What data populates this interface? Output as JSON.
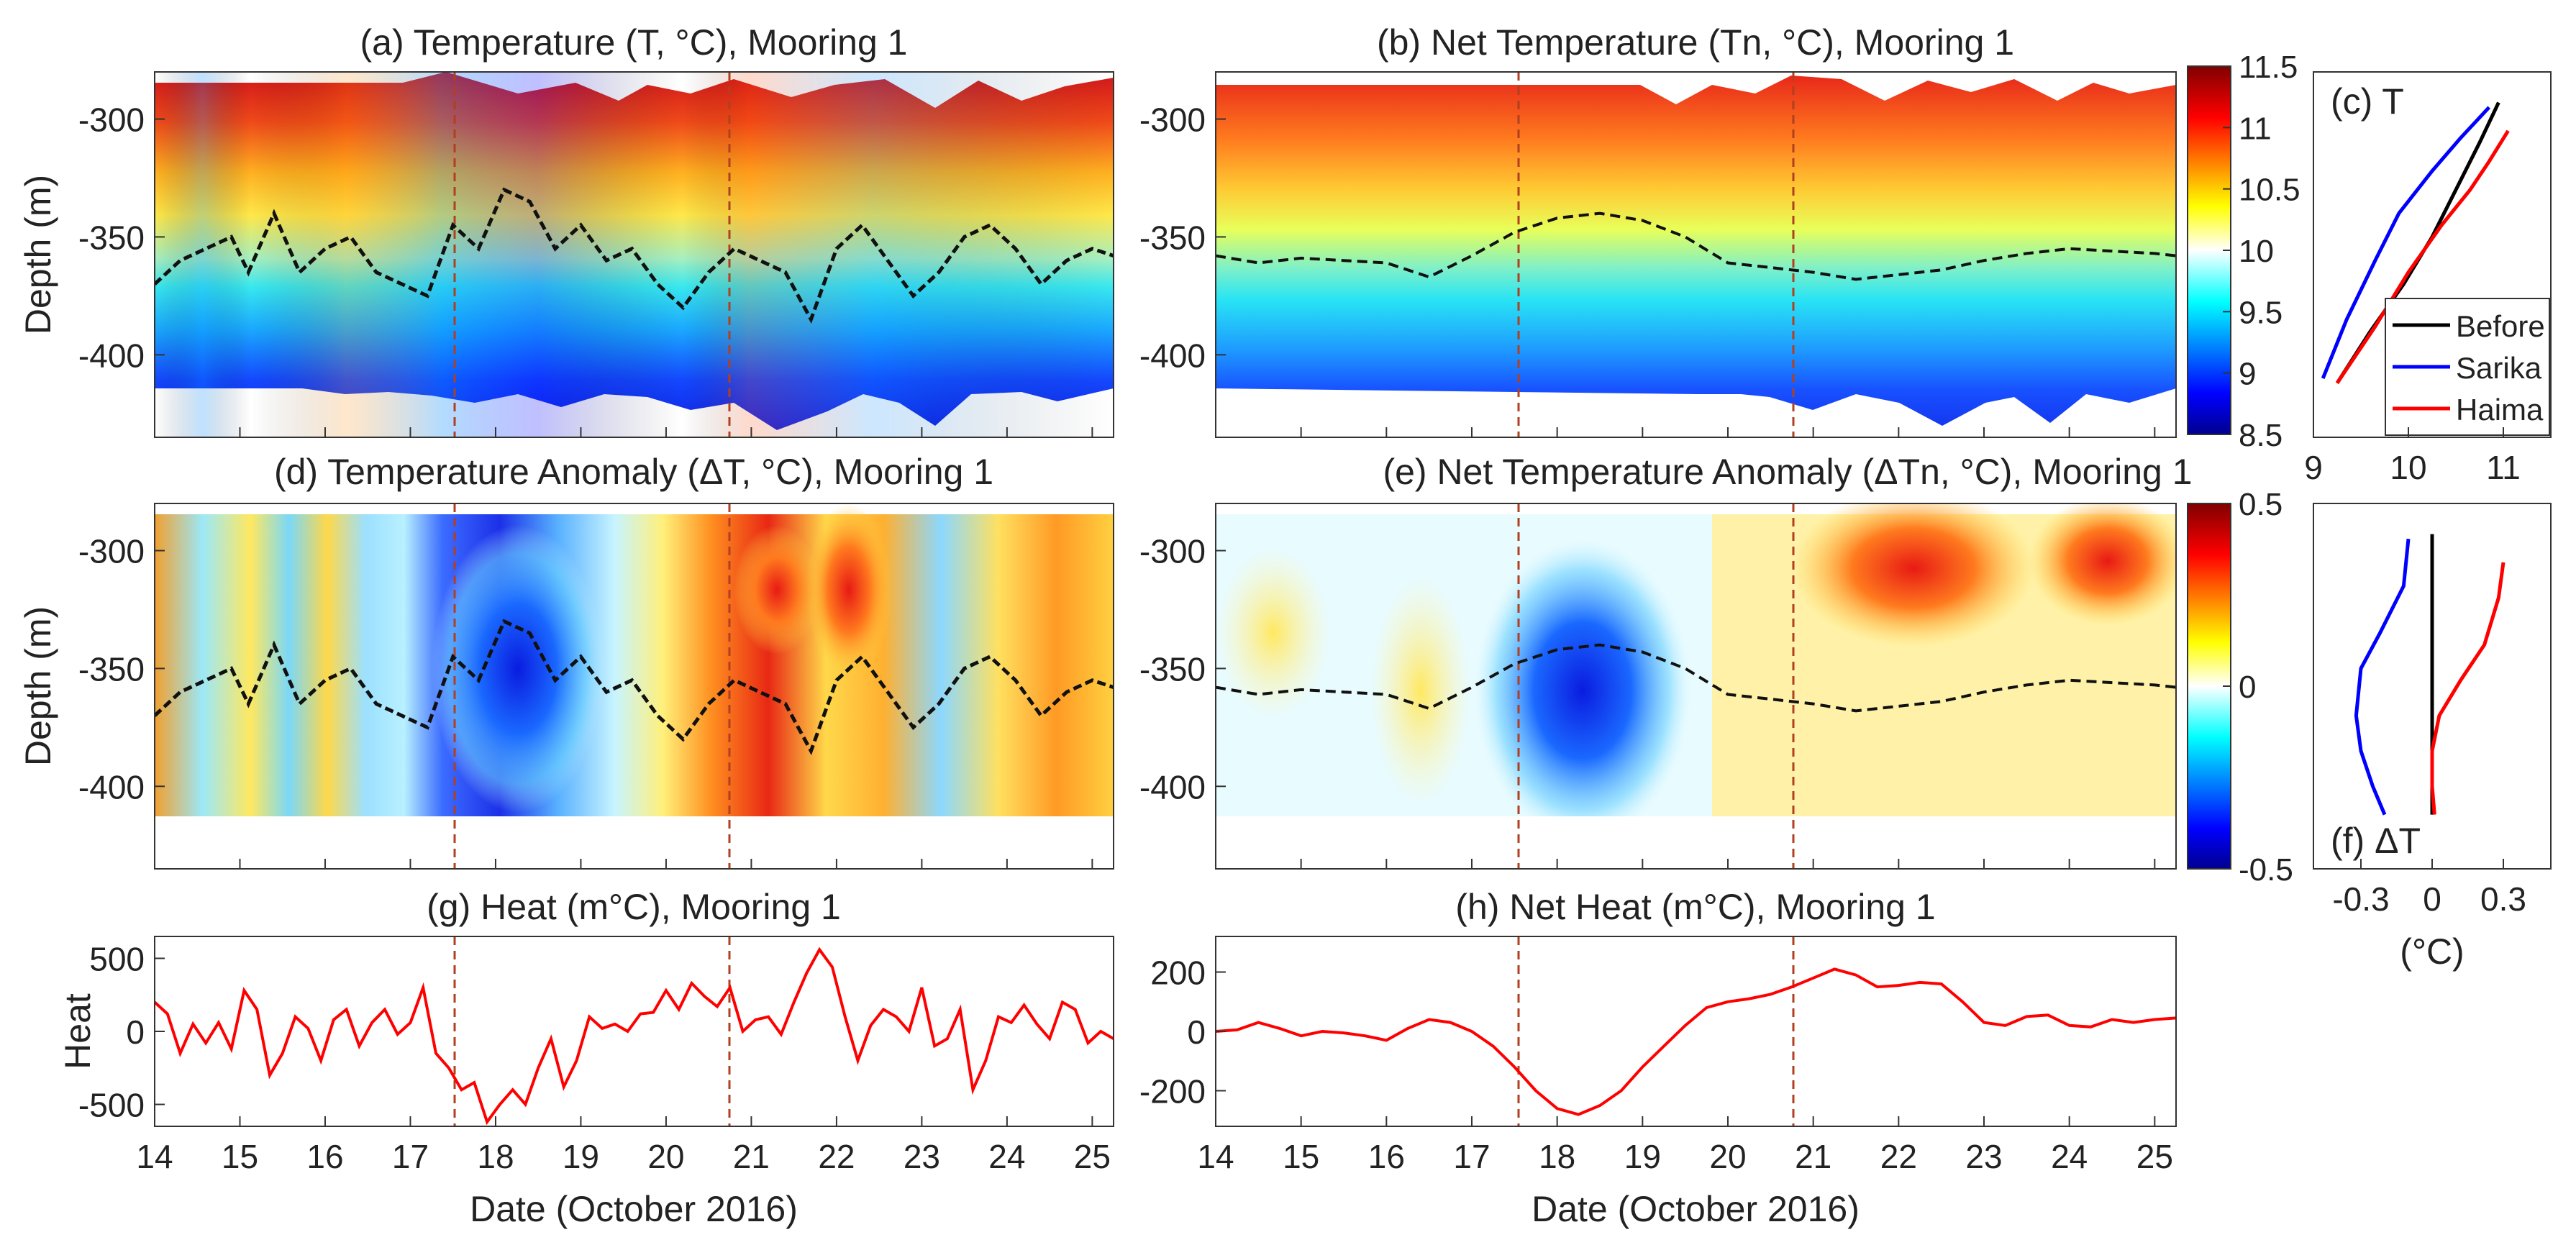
{
  "chart_data": [
    {
      "id": "a",
      "type": "heatmap",
      "title": "(a) Temperature (T, °C), Mooring 1",
      "ylabel": "Depth (m)",
      "xlim": [
        14,
        25.25
      ],
      "ylim": [
        -435,
        -280
      ],
      "yticks": [
        -300,
        -350,
        -400
      ],
      "ytick_labels": [
        "-300",
        "-350",
        "-400"
      ],
      "xticks": [
        15,
        16,
        17,
        18,
        19,
        20,
        21,
        22,
        23,
        24,
        25
      ],
      "event_lines": [
        17.55,
        20.75
      ],
      "series": [
        {
          "name": "",
          "type": "line",
          "style": "dashed black",
          "x": [
            14,
            14.3,
            14.6,
            14.9,
            15.1,
            15.4,
            15.7,
            16.0,
            16.3,
            16.6,
            16.9,
            17.2,
            17.5,
            17.8,
            18.1,
            18.4,
            18.7,
            19.0,
            19.3,
            19.6,
            19.9,
            20.2,
            20.5,
            20.8,
            21.1,
            21.4,
            21.7,
            22.0,
            22.3,
            22.6,
            22.9,
            23.2,
            23.5,
            23.8,
            24.1,
            24.4,
            24.7,
            25.0,
            25.25
          ],
          "values": [
            -370,
            -360,
            -355,
            -350,
            -365,
            -340,
            -365,
            -355,
            -350,
            -365,
            -370,
            -375,
            -345,
            -355,
            -330,
            -335,
            -355,
            -345,
            -360,
            -355,
            -370,
            -380,
            -365,
            -355,
            -360,
            -365,
            -385,
            -355,
            -345,
            -360,
            -375,
            -365,
            -350,
            -345,
            -355,
            -370,
            -360,
            -355,
            -358
          ]
        }
      ]
    },
    {
      "id": "b",
      "type": "heatmap",
      "title": "(b) Net Temperature (Tn, °C), Mooring 1",
      "ylabel": "",
      "xlim": [
        14,
        25.25
      ],
      "ylim": [
        -435,
        -280
      ],
      "yticks": [
        -300,
        -350,
        -400
      ],
      "ytick_labels": [
        "-300",
        "-350",
        "-400"
      ],
      "xticks": [
        15,
        16,
        17,
        18,
        19,
        20,
        21,
        22,
        23,
        24,
        25
      ],
      "event_lines": [
        17.55,
        20.75
      ],
      "series": [
        {
          "name": "",
          "type": "line",
          "style": "dashed black",
          "x": [
            14,
            14.5,
            15,
            15.5,
            16,
            16.5,
            17,
            17.5,
            18,
            18.5,
            19,
            19.5,
            20,
            20.5,
            21,
            21.5,
            22,
            22.5,
            23,
            23.5,
            24,
            24.5,
            25,
            25.25
          ],
          "values": [
            -358,
            -361,
            -359,
            -360,
            -361,
            -367,
            -358,
            -348,
            -342,
            -340,
            -343,
            -350,
            -361,
            -363,
            -365,
            -368,
            -366,
            -364,
            -360,
            -357,
            -355,
            -356,
            -357,
            -358
          ]
        }
      ]
    },
    {
      "id": "c",
      "type": "line",
      "title": "(c) T",
      "xlim": [
        9,
        11.5
      ],
      "ylim": [
        -435,
        -280
      ],
      "xticks": [
        9,
        10,
        11
      ],
      "xtick_labels": [
        "9",
        "10",
        "11"
      ],
      "legend": {
        "placement": "bottom-right",
        "entries": [
          "Before",
          "Sarika",
          "Haima"
        ]
      },
      "series": [
        {
          "name": "Before",
          "color": "#000000",
          "x": [
            9.25,
            9.6,
            9.95,
            10.25,
            10.5,
            10.75,
            10.95
          ],
          "y": [
            -412,
            -390,
            -370,
            -350,
            -330,
            -310,
            -293
          ]
        },
        {
          "name": "Sarika",
          "color": "#0000ff",
          "x": [
            9.1,
            9.35,
            9.65,
            9.9,
            10.25,
            10.55,
            10.85
          ],
          "y": [
            -410,
            -385,
            -360,
            -340,
            -322,
            -308,
            -295
          ]
        },
        {
          "name": "Haima",
          "color": "#ff0000",
          "x": [
            9.25,
            9.65,
            10.0,
            10.35,
            10.65,
            10.85,
            11.05
          ],
          "y": [
            -412,
            -388,
            -365,
            -345,
            -330,
            -318,
            -305
          ]
        }
      ],
      "colorbar": {
        "min": 8.5,
        "max": 11.5,
        "ticks": [
          8.5,
          9,
          9.5,
          10,
          10.5,
          11,
          11.5
        ],
        "tick_labels": [
          "8.5",
          "9",
          "9.5",
          "10",
          "10.5",
          "11",
          "11.5"
        ]
      }
    },
    {
      "id": "d",
      "type": "heatmap",
      "title": "(d) Temperature Anomaly (ΔT, °C), Mooring 1",
      "ylabel": "Depth (m)",
      "xlim": [
        14,
        25.25
      ],
      "ylim": [
        -435,
        -280
      ],
      "yticks": [
        -300,
        -350,
        -400
      ],
      "ytick_labels": [
        "-300",
        "-350",
        "-400"
      ],
      "xticks": [
        15,
        16,
        17,
        18,
        19,
        20,
        21,
        22,
        23,
        24,
        25
      ],
      "event_lines": [
        17.55,
        20.75
      ],
      "series": [
        {
          "name": "",
          "type": "line",
          "style": "dashed black",
          "x": [
            14,
            14.3,
            14.6,
            14.9,
            15.1,
            15.4,
            15.7,
            16.0,
            16.3,
            16.6,
            16.9,
            17.2,
            17.5,
            17.8,
            18.1,
            18.4,
            18.7,
            19.0,
            19.3,
            19.6,
            19.9,
            20.2,
            20.5,
            20.8,
            21.1,
            21.4,
            21.7,
            22.0,
            22.3,
            22.6,
            22.9,
            23.2,
            23.5,
            23.8,
            24.1,
            24.4,
            24.7,
            25.0,
            25.25
          ],
          "values": [
            -370,
            -360,
            -355,
            -350,
            -365,
            -340,
            -365,
            -355,
            -350,
            -365,
            -370,
            -375,
            -345,
            -355,
            -330,
            -335,
            -355,
            -345,
            -360,
            -355,
            -370,
            -380,
            -365,
            -355,
            -360,
            -365,
            -385,
            -355,
            -345,
            -360,
            -375,
            -365,
            -350,
            -345,
            -355,
            -370,
            -360,
            -355,
            -358
          ]
        }
      ]
    },
    {
      "id": "e",
      "type": "heatmap",
      "title": "(e) Net Temperature Anomaly (ΔTn, °C), Mooring 1",
      "ylabel": "",
      "xlim": [
        14,
        25.25
      ],
      "ylim": [
        -435,
        -280
      ],
      "yticks": [
        -300,
        -350,
        -400
      ],
      "ytick_labels": [
        "-300",
        "-350",
        "-400"
      ],
      "xticks": [
        15,
        16,
        17,
        18,
        19,
        20,
        21,
        22,
        23,
        24,
        25
      ],
      "event_lines": [
        17.55,
        20.75
      ],
      "series": [
        {
          "name": "",
          "type": "line",
          "style": "dashed black",
          "x": [
            14,
            14.5,
            15,
            15.5,
            16,
            16.5,
            17,
            17.5,
            18,
            18.5,
            19,
            19.5,
            20,
            20.5,
            21,
            21.5,
            22,
            22.5,
            23,
            23.5,
            24,
            24.5,
            25,
            25.25
          ],
          "values": [
            -358,
            -361,
            -359,
            -360,
            -361,
            -367,
            -358,
            -348,
            -342,
            -340,
            -343,
            -350,
            -361,
            -363,
            -365,
            -368,
            -366,
            -364,
            -360,
            -357,
            -355,
            -356,
            -357,
            -358
          ]
        }
      ]
    },
    {
      "id": "f",
      "type": "line",
      "title": "(f) ΔT",
      "xlabel": "(°C)",
      "xlim": [
        -0.5,
        0.5
      ],
      "ylim": [
        -435,
        -280
      ],
      "xticks": [
        -0.3,
        0,
        0.3
      ],
      "xtick_labels": [
        "-0.3",
        "0",
        "0.3"
      ],
      "series": [
        {
          "name": "Before",
          "color": "#000000",
          "x": [
            0,
            0,
            0,
            0,
            0
          ],
          "y": [
            -293,
            -320,
            -350,
            -380,
            -412
          ]
        },
        {
          "name": "Sarika",
          "color": "#0000ff",
          "x": [
            -0.1,
            -0.12,
            -0.22,
            -0.3,
            -0.32,
            -0.3,
            -0.25,
            -0.2
          ],
          "y": [
            -295,
            -315,
            -335,
            -350,
            -370,
            -385,
            -400,
            -412
          ]
        },
        {
          "name": "Haima",
          "color": "#ff0000",
          "x": [
            0.3,
            0.28,
            0.22,
            0.12,
            0.03,
            0.0,
            0.0,
            0.01
          ],
          "y": [
            -305,
            -320,
            -340,
            -355,
            -370,
            -385,
            -400,
            -412
          ]
        }
      ],
      "colorbar": {
        "min": -0.5,
        "max": 0.5,
        "ticks": [
          -0.5,
          0,
          0.5
        ],
        "tick_labels": [
          "-0.5",
          "0",
          "0.5"
        ]
      }
    },
    {
      "id": "g",
      "type": "line",
      "title": "(g) Heat (m°C), Mooring 1",
      "xlabel": "Date (October 2016)",
      "ylabel": "Heat",
      "xlim": [
        14,
        25.25
      ],
      "ylim": [
        -650,
        650
      ],
      "yticks": [
        500,
        0,
        -500
      ],
      "ytick_labels": [
        "500",
        "0",
        "-500"
      ],
      "xticks": [
        14,
        15,
        16,
        17,
        18,
        19,
        20,
        21,
        22,
        23,
        24,
        25
      ],
      "xtick_labels": [
        "14",
        "15",
        "16",
        "17",
        "18",
        "19",
        "20",
        "21",
        "22",
        "23",
        "24",
        "25"
      ],
      "event_lines": [
        17.55,
        20.75
      ],
      "series": [
        {
          "name": "",
          "color": "#ff0000",
          "x": [
            14,
            14.15,
            14.3,
            14.45,
            14.6,
            14.75,
            14.9,
            15.05,
            15.2,
            15.35,
            15.5,
            15.65,
            15.8,
            15.95,
            16.1,
            16.25,
            16.4,
            16.55,
            16.7,
            16.85,
            17.0,
            17.15,
            17.3,
            17.45,
            17.6,
            17.75,
            17.9,
            18.05,
            18.2,
            18.35,
            18.5,
            18.65,
            18.8,
            18.95,
            19.1,
            19.25,
            19.4,
            19.55,
            19.7,
            19.85,
            20.0,
            20.15,
            20.3,
            20.45,
            20.6,
            20.75,
            20.9,
            21.05,
            21.2,
            21.35,
            21.5,
            21.65,
            21.8,
            21.95,
            22.1,
            22.25,
            22.4,
            22.55,
            22.7,
            22.85,
            23.0,
            23.15,
            23.3,
            23.45,
            23.6,
            23.75,
            23.9,
            24.05,
            24.2,
            24.35,
            24.5,
            24.65,
            24.8,
            24.95,
            25.1,
            25.25
          ],
          "values": [
            200,
            120,
            -150,
            50,
            -80,
            60,
            -120,
            280,
            150,
            -300,
            -150,
            100,
            20,
            -200,
            80,
            150,
            -100,
            60,
            150,
            -20,
            60,
            300,
            -150,
            -250,
            -400,
            -350,
            -620,
            -500,
            -400,
            -500,
            -250,
            -50,
            -380,
            -200,
            100,
            20,
            50,
            0,
            120,
            130,
            280,
            150,
            330,
            240,
            170,
            300,
            0,
            80,
            100,
            -20,
            200,
            400,
            560,
            440,
            100,
            -200,
            40,
            150,
            100,
            0,
            300,
            -100,
            -50,
            150,
            -400,
            -200,
            100,
            60,
            180,
            50,
            -50,
            200,
            150,
            -80,
            0,
            -50
          ]
        }
      ]
    },
    {
      "id": "h",
      "type": "line",
      "title": "(h) Net Heat (m°C), Mooring 1",
      "xlabel": "Date (October 2016)",
      "ylabel": "",
      "xlim": [
        14,
        25.25
      ],
      "ylim": [
        -320,
        320
      ],
      "yticks": [
        200,
        0,
        -200
      ],
      "ytick_labels": [
        "200",
        "0",
        "-200"
      ],
      "xticks": [
        14,
        15,
        16,
        17,
        18,
        19,
        20,
        21,
        22,
        23,
        24,
        25
      ],
      "xtick_labels": [
        "14",
        "15",
        "16",
        "17",
        "18",
        "19",
        "20",
        "21",
        "22",
        "23",
        "24",
        "25"
      ],
      "event_lines": [
        17.55,
        20.75
      ],
      "series": [
        {
          "name": "",
          "color": "#ff0000",
          "x": [
            14,
            14.25,
            14.5,
            14.75,
            15,
            15.25,
            15.5,
            15.75,
            16,
            16.25,
            16.5,
            16.75,
            17,
            17.25,
            17.5,
            17.75,
            18,
            18.25,
            18.5,
            18.75,
            19,
            19.25,
            19.5,
            19.75,
            20,
            20.25,
            20.5,
            20.75,
            21,
            21.25,
            21.5,
            21.75,
            22,
            22.25,
            22.5,
            22.75,
            23,
            23.25,
            23.5,
            23.75,
            24,
            24.25,
            24.5,
            24.75,
            25,
            25.25
          ],
          "values": [
            0,
            5,
            30,
            10,
            -15,
            0,
            -5,
            -15,
            -30,
            10,
            40,
            30,
            0,
            -50,
            -120,
            -200,
            -260,
            -280,
            -250,
            -200,
            -120,
            -50,
            20,
            80,
            100,
            110,
            125,
            150,
            180,
            210,
            190,
            150,
            155,
            165,
            160,
            100,
            30,
            20,
            50,
            55,
            20,
            15,
            40,
            30,
            40,
            45
          ]
        }
      ]
    }
  ]
}
